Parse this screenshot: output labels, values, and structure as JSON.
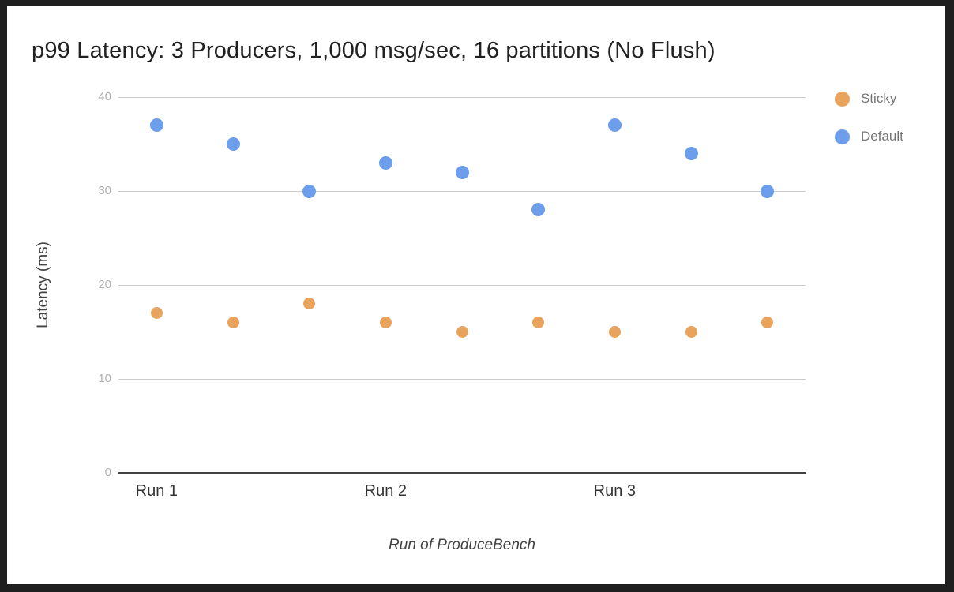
{
  "frame": {
    "background_color": "#1f1f1f",
    "card_background_color": "#ffffff"
  },
  "chart_data": {
    "type": "scatter",
    "title": "p99 Latency: 3 Producers, 1,000 msg/sec, 16 partitions (No Flush)",
    "xlabel": "Run of ProduceBench",
    "ylabel": "Latency (ms)",
    "ylim": [
      0,
      40
    ],
    "yticks": [
      0,
      10,
      20,
      30,
      40
    ],
    "grid": true,
    "legend_position": "top-right",
    "x_slot_count": 9,
    "x_category_labels": [
      {
        "label": "Run 1",
        "slot": 0
      },
      {
        "label": "Run 2",
        "slot": 3
      },
      {
        "label": "Run 3",
        "slot": 6
      }
    ],
    "series": [
      {
        "name": "Sticky",
        "color": "#e8a45d",
        "dot_diameter": 15,
        "values": [
          17,
          16,
          18,
          16,
          15,
          16,
          15,
          15,
          16
        ]
      },
      {
        "name": "Default",
        "color": "#6d9eeb",
        "dot_diameter": 17,
        "values": [
          37,
          35,
          30,
          33,
          32,
          28,
          37,
          34,
          30
        ]
      }
    ]
  }
}
